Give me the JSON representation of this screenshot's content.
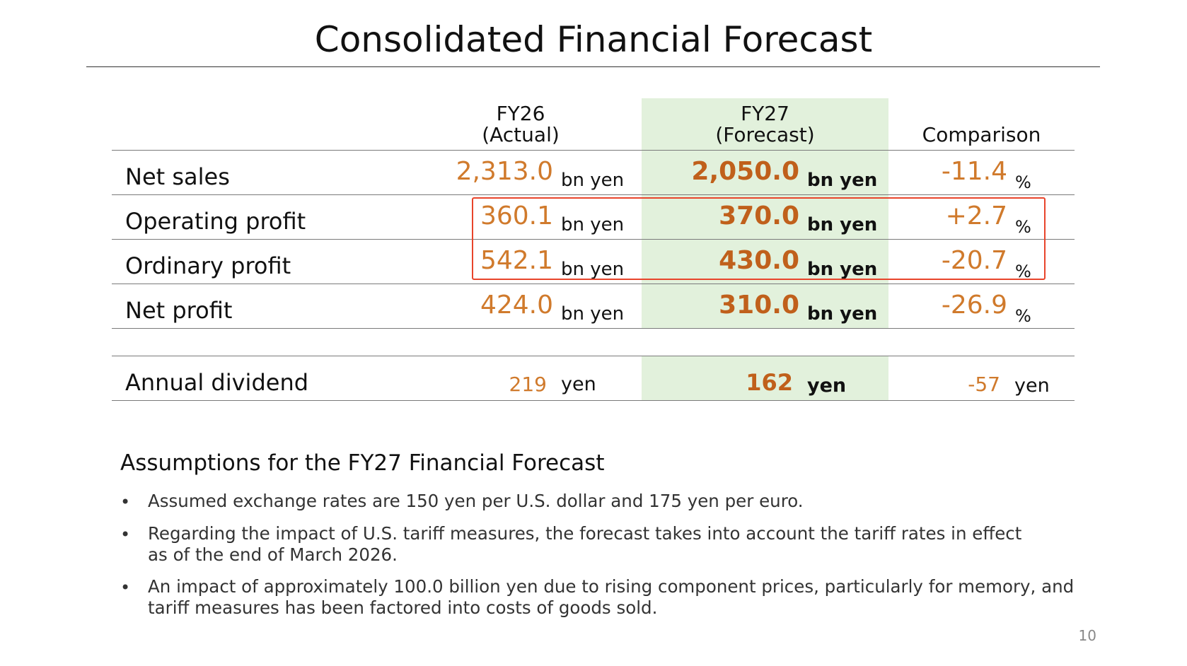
{
  "title": "Consolidated Financial Forecast",
  "table": {
    "headers": {
      "fy26": [
        "FY26",
        "(Actual)"
      ],
      "fy27": [
        "FY27",
        "(Forecast)"
      ],
      "comparison": "Comparison"
    },
    "rows": [
      {
        "label": "Net sales",
        "fy26": "2,313.0",
        "fy26_unit": "bn yen",
        "fy27": "2,050.0",
        "fy27_unit": "bn yen",
        "comparison": "-11.4",
        "comparison_unit": "%"
      },
      {
        "label": "Operating profit",
        "fy26": "360.1",
        "fy26_unit": "bn yen",
        "fy27": "370.0",
        "fy27_unit": "bn yen",
        "comparison": "+2.7",
        "comparison_unit": "%"
      },
      {
        "label": "Ordinary profit",
        "fy26": "542.1",
        "fy26_unit": "bn yen",
        "fy27": "430.0",
        "fy27_unit": "bn yen",
        "comparison": "-20.7",
        "comparison_unit": "%"
      },
      {
        "label": "Net profit",
        "fy26": "424.0",
        "fy26_unit": "bn yen",
        "fy27": "310.0",
        "fy27_unit": "bn yen",
        "comparison": "-26.9",
        "comparison_unit": "%"
      }
    ],
    "dividend": {
      "label": "Annual dividend",
      "fy26": "219",
      "fy26_unit": "yen",
      "fy27": "162",
      "fy27_unit": "yen",
      "comparison": "-57",
      "comparison_unit": "yen"
    }
  },
  "assumptions": {
    "title": "Assumptions for the FY27 Financial Forecast",
    "bullet_symbol": "•",
    "items": [
      [
        "Assumed exchange rates are 150 yen per U.S. dollar and 175 yen per euro."
      ],
      [
        "Regarding the impact of U.S. tariff measures, the forecast takes into account the tariff rates in effect",
        "as of the end of March 2026."
      ],
      [
        "An impact of approximately 100.0 billion yen due to rising component prices, particularly for memory, and",
        "tariff measures has been factored into costs of goods sold."
      ]
    ]
  },
  "page_number": "10",
  "colors": {
    "accent_orange": "#d07a2c",
    "forecast_column_bg": "#e2f1dc",
    "highlight_box": "#e8442b"
  }
}
